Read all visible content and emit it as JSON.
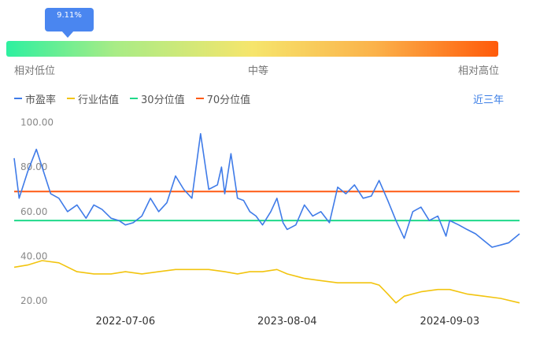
{
  "gauge": {
    "percentile": "9.11%",
    "percentile_value": 0.0911,
    "label_low": "相对低位",
    "label_mid": "中等",
    "label_high": "相对高位"
  },
  "legend": [
    {
      "name": "市盈率",
      "color": "#3f7be8"
    },
    {
      "name": "行业估值",
      "color": "#f2c40f"
    },
    {
      "name": "30分位值",
      "color": "#1fd98a"
    },
    {
      "name": "70分位值",
      "color": "#ff5a14"
    }
  ],
  "period_button": "近三年",
  "chart_data": {
    "type": "line",
    "x_tick_labels": [
      "2022-07-06",
      "2023-08-04",
      "2024-09-03"
    ],
    "y_tick_labels": [
      "20.00",
      "40.00",
      "60.00",
      "80.00",
      "100.00"
    ],
    "ylim": [
      15,
      102
    ],
    "x_range": [
      "2021-10-08",
      "2025-02-20"
    ],
    "series": [
      {
        "name": "市盈率",
        "color": "#3f7be8",
        "x": [
          "2021-10-08",
          "2021-10-20",
          "2021-11-10",
          "2021-12-01",
          "2021-12-15",
          "2022-01-05",
          "2022-01-25",
          "2022-02-15",
          "2022-03-10",
          "2022-04-01",
          "2022-04-20",
          "2022-05-10",
          "2022-06-01",
          "2022-06-20",
          "2022-07-06",
          "2022-07-25",
          "2022-08-15",
          "2022-09-05",
          "2022-09-25",
          "2022-10-15",
          "2022-11-05",
          "2022-11-25",
          "2022-12-15",
          "2023-01-05",
          "2023-01-25",
          "2023-02-15",
          "2023-02-25",
          "2023-03-05",
          "2023-03-20",
          "2023-04-05",
          "2023-04-20",
          "2023-05-05",
          "2023-05-20",
          "2023-06-05",
          "2023-06-25",
          "2023-07-10",
          "2023-07-25",
          "2023-08-04",
          "2023-08-25",
          "2023-09-15",
          "2023-10-05",
          "2023-10-25",
          "2023-11-15",
          "2023-12-05",
          "2023-12-25",
          "2024-01-15",
          "2024-02-05",
          "2024-02-25",
          "2024-03-15",
          "2024-04-05",
          "2024-04-25",
          "2024-05-15",
          "2024-06-05",
          "2024-06-25",
          "2024-07-15",
          "2024-08-05",
          "2024-08-25",
          "2024-09-03",
          "2024-09-25",
          "2024-10-15",
          "2024-11-05",
          "2024-11-25",
          "2024-12-15",
          "2025-01-05",
          "2025-01-25",
          "2025-02-20"
        ],
        "values": [
          84,
          66,
          78,
          88,
          80,
          68,
          66,
          60,
          63,
          57,
          63,
          61,
          57,
          56,
          54,
          55,
          58,
          66,
          60,
          64,
          76,
          70,
          66,
          95,
          70,
          72,
          80,
          68,
          86,
          66,
          65,
          60,
          58,
          54,
          60,
          66,
          55,
          52,
          54,
          63,
          58,
          60,
          55,
          71,
          68,
          72,
          66,
          67,
          74,
          65,
          56,
          48,
          60,
          62,
          56,
          58,
          49,
          56,
          54,
          52,
          50,
          47,
          44,
          45,
          46,
          50
        ]
      },
      {
        "name": "行业估值",
        "color": "#f2c40f",
        "x": [
          "2021-10-08",
          "2021-11-10",
          "2021-12-15",
          "2022-01-25",
          "2022-03-10",
          "2022-04-20",
          "2022-06-01",
          "2022-07-06",
          "2022-08-15",
          "2022-09-25",
          "2022-11-05",
          "2022-12-15",
          "2023-01-25",
          "2023-03-05",
          "2023-04-05",
          "2023-05-05",
          "2023-06-05",
          "2023-07-10",
          "2023-08-04",
          "2023-09-15",
          "2023-10-25",
          "2023-12-05",
          "2024-01-15",
          "2024-02-25",
          "2024-03-15",
          "2024-04-05",
          "2024-04-25",
          "2024-05-15",
          "2024-06-25",
          "2024-08-05",
          "2024-09-03",
          "2024-10-15",
          "2024-11-25",
          "2025-01-05",
          "2025-02-20"
        ],
        "values": [
          35,
          36,
          38,
          37,
          33,
          32,
          32,
          33,
          32,
          33,
          34,
          34,
          34,
          33,
          32,
          33,
          33,
          34,
          32,
          30,
          29,
          28,
          28,
          28,
          27,
          23,
          19,
          22,
          24,
          25,
          25,
          23,
          22,
          21,
          19
        ]
      },
      {
        "name": "30分位值",
        "color": "#1fd98a",
        "x": [
          "2021-10-08",
          "2025-02-20"
        ],
        "values": [
          56,
          56
        ]
      },
      {
        "name": "70分位值",
        "color": "#ff5a14",
        "x": [
          "2021-10-08",
          "2025-02-20"
        ],
        "values": [
          69,
          69
        ]
      }
    ]
  }
}
